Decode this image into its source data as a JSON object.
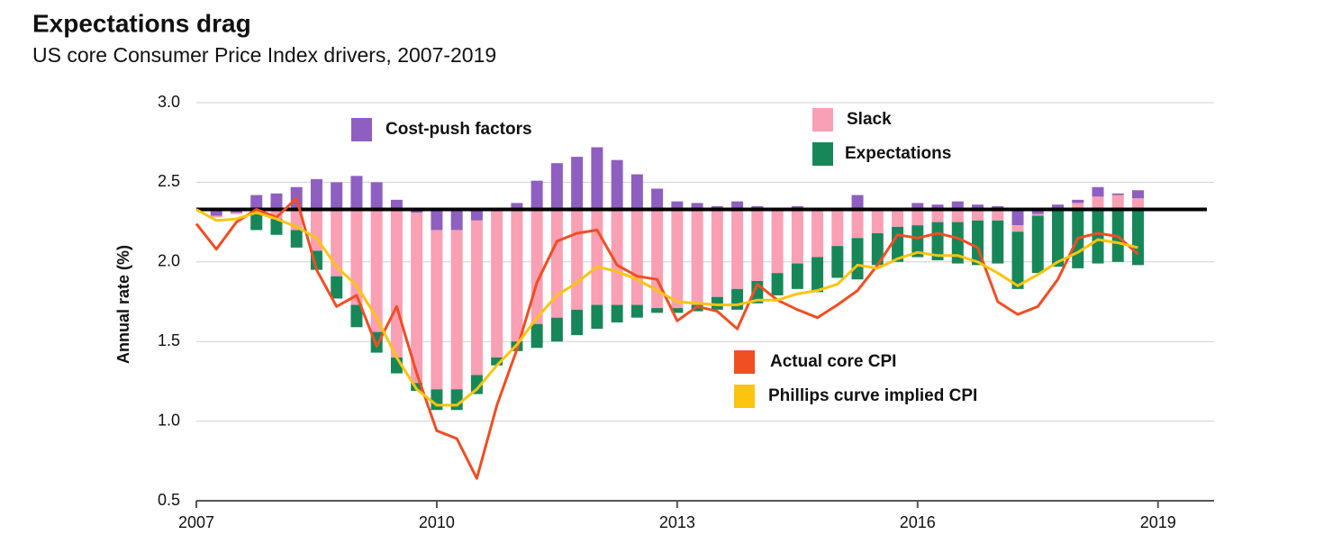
{
  "chart_data": {
    "type": "bar",
    "title": "Expectations drag",
    "subtitle": "US core Consumer Price Index drivers, 2007-2019",
    "y_label": "Annual rate (%)",
    "xlim": [
      2007,
      2019.7
    ],
    "xticks": [
      2007,
      2010,
      2013,
      2016,
      2019
    ],
    "ylim": [
      0.5,
      3.0
    ],
    "yticks": [
      {
        "value": 0.5,
        "label": "0.5"
      },
      {
        "value": 1.0,
        "label": "1.0"
      },
      {
        "value": 1.5,
        "label": "1.5"
      },
      {
        "value": 2.0,
        "label": "2.0"
      },
      {
        "value": 2.5,
        "label": "2.5"
      },
      {
        "value": 3.0,
        "label": "3.0"
      }
    ],
    "grid": true,
    "baseline": 2.33,
    "x": [
      2007,
      2007.25,
      2007.5,
      2007.75,
      2008,
      2008.25,
      2008.5,
      2008.75,
      2009,
      2009.25,
      2009.5,
      2009.75,
      2010,
      2010.25,
      2010.5,
      2010.75,
      2011,
      2011.25,
      2011.5,
      2011.75,
      2012,
      2012.25,
      2012.5,
      2012.75,
      2013,
      2013.25,
      2013.5,
      2013.75,
      2014,
      2014.25,
      2014.5,
      2014.75,
      2015,
      2015.25,
      2015.5,
      2015.75,
      2016,
      2016.25,
      2016.5,
      2016.75,
      2017,
      2017.25,
      2017.5,
      2017.75,
      2018,
      2018.25,
      2018.5,
      2018.75
    ],
    "series": [
      {
        "name": "Cost-push factors",
        "type": "bar",
        "color": "#8e5fc0",
        "values": [
          null,
          -0.04,
          -0.02,
          0.09,
          0.1,
          0.14,
          0.19,
          0.17,
          0.21,
          0.17,
          0.06,
          -0.02,
          -0.13,
          -0.13,
          -0.07,
          0,
          0.04,
          0.18,
          0.29,
          0.33,
          0.39,
          0.31,
          0.22,
          0.13,
          0.05,
          0.04,
          0.02,
          0.05,
          0.02,
          0.01,
          0.02,
          0,
          -0.01,
          0.09,
          0,
          0,
          0.04,
          0.03,
          0.05,
          0.03,
          0.02,
          -0.1,
          -0.03,
          0.02,
          0.02,
          0.06,
          0.01,
          0.05
        ]
      },
      {
        "name": "Slack",
        "type": "bar",
        "color": "#f9a0b4",
        "values": [
          null,
          -0.01,
          -0.01,
          -0.03,
          -0.06,
          -0.13,
          -0.26,
          -0.42,
          -0.6,
          -0.77,
          -0.93,
          -1.07,
          -1.0,
          -1.0,
          -0.97,
          -0.93,
          -0.83,
          -0.72,
          -0.68,
          -0.63,
          -0.6,
          -0.6,
          -0.6,
          -0.62,
          -0.62,
          -0.6,
          -0.55,
          -0.5,
          -0.45,
          -0.4,
          -0.34,
          -0.3,
          -0.22,
          -0.18,
          -0.15,
          -0.11,
          -0.1,
          -0.08,
          -0.08,
          -0.07,
          -0.07,
          -0.04,
          -0.01,
          0.01,
          0.04,
          0.08,
          0.09,
          0.07
        ]
      },
      {
        "name": "Expectations",
        "type": "bar",
        "color": "#17875a",
        "values": [
          null,
          0,
          0,
          -0.1,
          -0.1,
          -0.11,
          -0.12,
          -0.14,
          -0.14,
          -0.13,
          -0.1,
          -0.05,
          -0.13,
          -0.13,
          -0.12,
          -0.05,
          -0.06,
          -0.15,
          -0.15,
          -0.16,
          -0.15,
          -0.11,
          -0.08,
          -0.03,
          -0.03,
          -0.04,
          -0.08,
          -0.13,
          -0.14,
          -0.14,
          -0.16,
          -0.22,
          -0.2,
          -0.26,
          -0.2,
          -0.22,
          -0.2,
          -0.24,
          -0.26,
          -0.28,
          -0.27,
          -0.36,
          -0.36,
          -0.36,
          -0.37,
          -0.34,
          -0.33,
          -0.35
        ]
      },
      {
        "name": "Actual core CPI",
        "type": "line",
        "color": "#f04e23",
        "values": [
          2.24,
          2.08,
          2.25,
          2.33,
          2.28,
          2.4,
          1.95,
          1.72,
          1.79,
          1.47,
          1.72,
          1.3,
          0.94,
          0.89,
          0.64,
          1.1,
          1.45,
          1.87,
          2.13,
          2.18,
          2.2,
          1.98,
          1.91,
          1.89,
          1.63,
          1.72,
          1.69,
          1.58,
          1.86,
          1.76,
          1.7,
          1.65,
          1.73,
          1.82,
          1.98,
          2.17,
          2.15,
          2.18,
          2.15,
          2.09,
          1.75,
          1.67,
          1.72,
          1.89,
          2.15,
          2.18,
          2.16,
          2.05
        ]
      },
      {
        "name": "Phillips curve implied CPI",
        "type": "line",
        "color": "#fcc40e",
        "values": [
          2.33,
          2.26,
          2.27,
          2.31,
          2.27,
          2.22,
          2.15,
          1.97,
          1.85,
          1.65,
          1.4,
          1.2,
          1.1,
          1.1,
          1.2,
          1.35,
          1.48,
          1.65,
          1.79,
          1.87,
          1.97,
          1.94,
          1.89,
          1.82,
          1.75,
          1.74,
          1.73,
          1.73,
          1.76,
          1.76,
          1.8,
          1.82,
          1.86,
          1.98,
          1.96,
          2.02,
          2.06,
          2.04,
          2.04,
          2.0,
          1.93,
          1.85,
          1.92,
          2.0,
          2.06,
          2.14,
          2.12,
          2.09
        ]
      }
    ]
  }
}
